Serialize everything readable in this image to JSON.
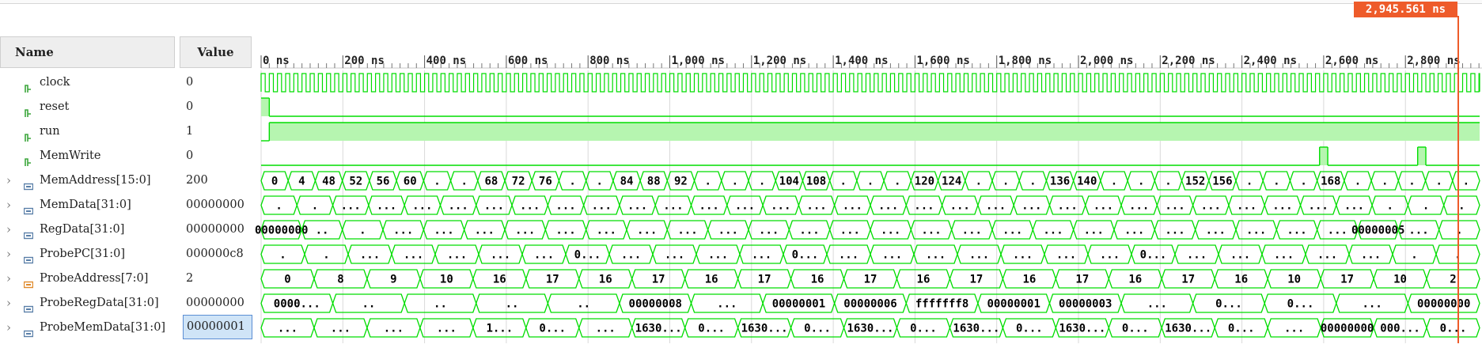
{
  "cursor": {
    "label": "2,945.561 ns"
  },
  "columns": {
    "name": "Name",
    "value": "Value"
  },
  "time_ruler": {
    "start_ns": 0,
    "end_ns": 3000,
    "ticks": [
      "0 ns",
      "200 ns",
      "400 ns",
      "600 ns",
      "800 ns",
      "1,000 ns",
      "1,200 ns",
      "1,400 ns",
      "1,600 ns",
      "1,800 ns",
      "2,000 ns",
      "2,200 ns",
      "2,400 ns",
      "2,600 ns",
      "2,800 ns"
    ]
  },
  "colors": {
    "wave": "#00dd00",
    "wave_fill": "#b6f5b0",
    "bus_text": "#000000",
    "cursor": "#ee5b2a",
    "grid": "#d9d9d9"
  },
  "signals": [
    {
      "name": "clock",
      "value": "0",
      "kind": "clock",
      "icon": "bit-signal-icon",
      "icon_color": "#3ca63c",
      "expandable": false
    },
    {
      "name": "reset",
      "value": "0",
      "kind": "bit",
      "icon": "bit-signal-icon",
      "icon_color": "#3ca63c",
      "expandable": false,
      "transitions": [
        [
          0,
          1
        ],
        [
          20,
          0
        ]
      ]
    },
    {
      "name": "run",
      "value": "1",
      "kind": "bit",
      "icon": "bit-signal-icon",
      "icon_color": "#3ca63c",
      "expandable": false,
      "transitions": [
        [
          0,
          0
        ],
        [
          20,
          1
        ]
      ]
    },
    {
      "name": "MemWrite",
      "value": "0",
      "kind": "bit",
      "icon": "bit-signal-icon",
      "icon_color": "#3ca63c",
      "expandable": false,
      "transitions": [
        [
          0,
          0
        ],
        [
          2590,
          1
        ],
        [
          2610,
          0
        ],
        [
          2830,
          1
        ],
        [
          2850,
          0
        ]
      ]
    },
    {
      "name": "MemAddress[15:0]",
      "value": "200",
      "kind": "bus",
      "icon": "bus-signal-icon",
      "icon_color": "#5a7fa8",
      "expandable": true,
      "labels": [
        "0",
        "4",
        "48",
        "52",
        "56",
        "60",
        ".",
        ".",
        "68",
        "72",
        "76",
        ".",
        ".",
        "84",
        "88",
        "92",
        ".",
        ".",
        ".",
        "104",
        "108",
        ".",
        ".",
        ".",
        "120",
        "124",
        ".",
        ".",
        ".",
        "136",
        "140",
        ".",
        ".",
        ".",
        "152",
        "156",
        ".",
        ".",
        ".",
        "168",
        ".",
        ".",
        ".",
        ".",
        "."
      ]
    },
    {
      "name": "MemData[31:0]",
      "value": "00000000",
      "kind": "bus",
      "icon": "bus-signal-icon",
      "icon_color": "#5a7fa8",
      "expandable": true,
      "labels": [
        ".",
        ".",
        "...",
        "...",
        "...",
        "...",
        "...",
        "...",
        "...",
        "...",
        "...",
        "...",
        "...",
        "...",
        "...",
        "...",
        "...",
        "...",
        "...",
        "...",
        "...",
        "...",
        "...",
        "...",
        "...",
        "...",
        "...",
        "...",
        "...",
        "...",
        "...",
        ".",
        ".",
        "."
      ]
    },
    {
      "name": "RegData[31:0]",
      "value": "00000000",
      "kind": "bus",
      "icon": "bus-signal-icon",
      "icon_color": "#5a7fa8",
      "expandable": true,
      "labels": [
        "00000000",
        "..",
        ".",
        "...",
        "...",
        "...",
        "...",
        "...",
        "...",
        "...",
        "...",
        "...",
        "...",
        "...",
        "...",
        "...",
        "...",
        "...",
        "...",
        "...",
        "...",
        "...",
        "...",
        "...",
        "...",
        "...",
        "...",
        "00000005",
        "...",
        "."
      ]
    },
    {
      "name": "ProbePC[31:0]",
      "value": "000000c8",
      "kind": "bus",
      "icon": "bus-signal-icon",
      "icon_color": "#5a7fa8",
      "expandable": true,
      "labels": [
        ".",
        ".",
        "...",
        "...",
        "...",
        "...",
        "...",
        "0...",
        "...",
        "...",
        "...",
        "...",
        "0...",
        "...",
        "...",
        "...",
        "...",
        "...",
        "...",
        "...",
        "0...",
        "...",
        "...",
        "...",
        "...",
        "...",
        ".",
        "."
      ]
    },
    {
      "name": "ProbeAddress[7:0]",
      "value": "2",
      "kind": "bus",
      "icon": "bus-signal-icon-orange",
      "icon_color": "#e08a2c",
      "expandable": true,
      "labels": [
        "0",
        "8",
        "9",
        "10",
        "16",
        "17",
        "16",
        "17",
        "16",
        "17",
        "16",
        "17",
        "16",
        "17",
        "16",
        "17",
        "16",
        "17",
        "16",
        "10",
        "17",
        "10",
        "2"
      ]
    },
    {
      "name": "ProbeRegData[31:0]",
      "value": "00000000",
      "kind": "bus",
      "icon": "bus-signal-icon",
      "icon_color": "#5a7fa8",
      "expandable": true,
      "labels": [
        "0000...",
        "..",
        "..",
        "..",
        "..",
        "00000008",
        "...",
        "00000001",
        "00000006",
        "fffffff8",
        "00000001",
        "00000003",
        "...",
        "0...",
        "0...",
        "...",
        "00000000"
      ]
    },
    {
      "name": "ProbeMemData[31:0]",
      "value": "00000001",
      "kind": "bus",
      "icon": "bus-signal-icon",
      "icon_color": "#5a7fa8",
      "expandable": true,
      "selected": true,
      "labels": [
        "...",
        "...",
        "...",
        "...",
        "1...",
        "0...",
        "...",
        "1630...",
        "0...",
        "1630...",
        "0...",
        "1630...",
        "0...",
        "1630...",
        "0...",
        "1630...",
        "0...",
        "1630...",
        "0...",
        "...",
        "00000000",
        "000...",
        "0..."
      ]
    }
  ]
}
